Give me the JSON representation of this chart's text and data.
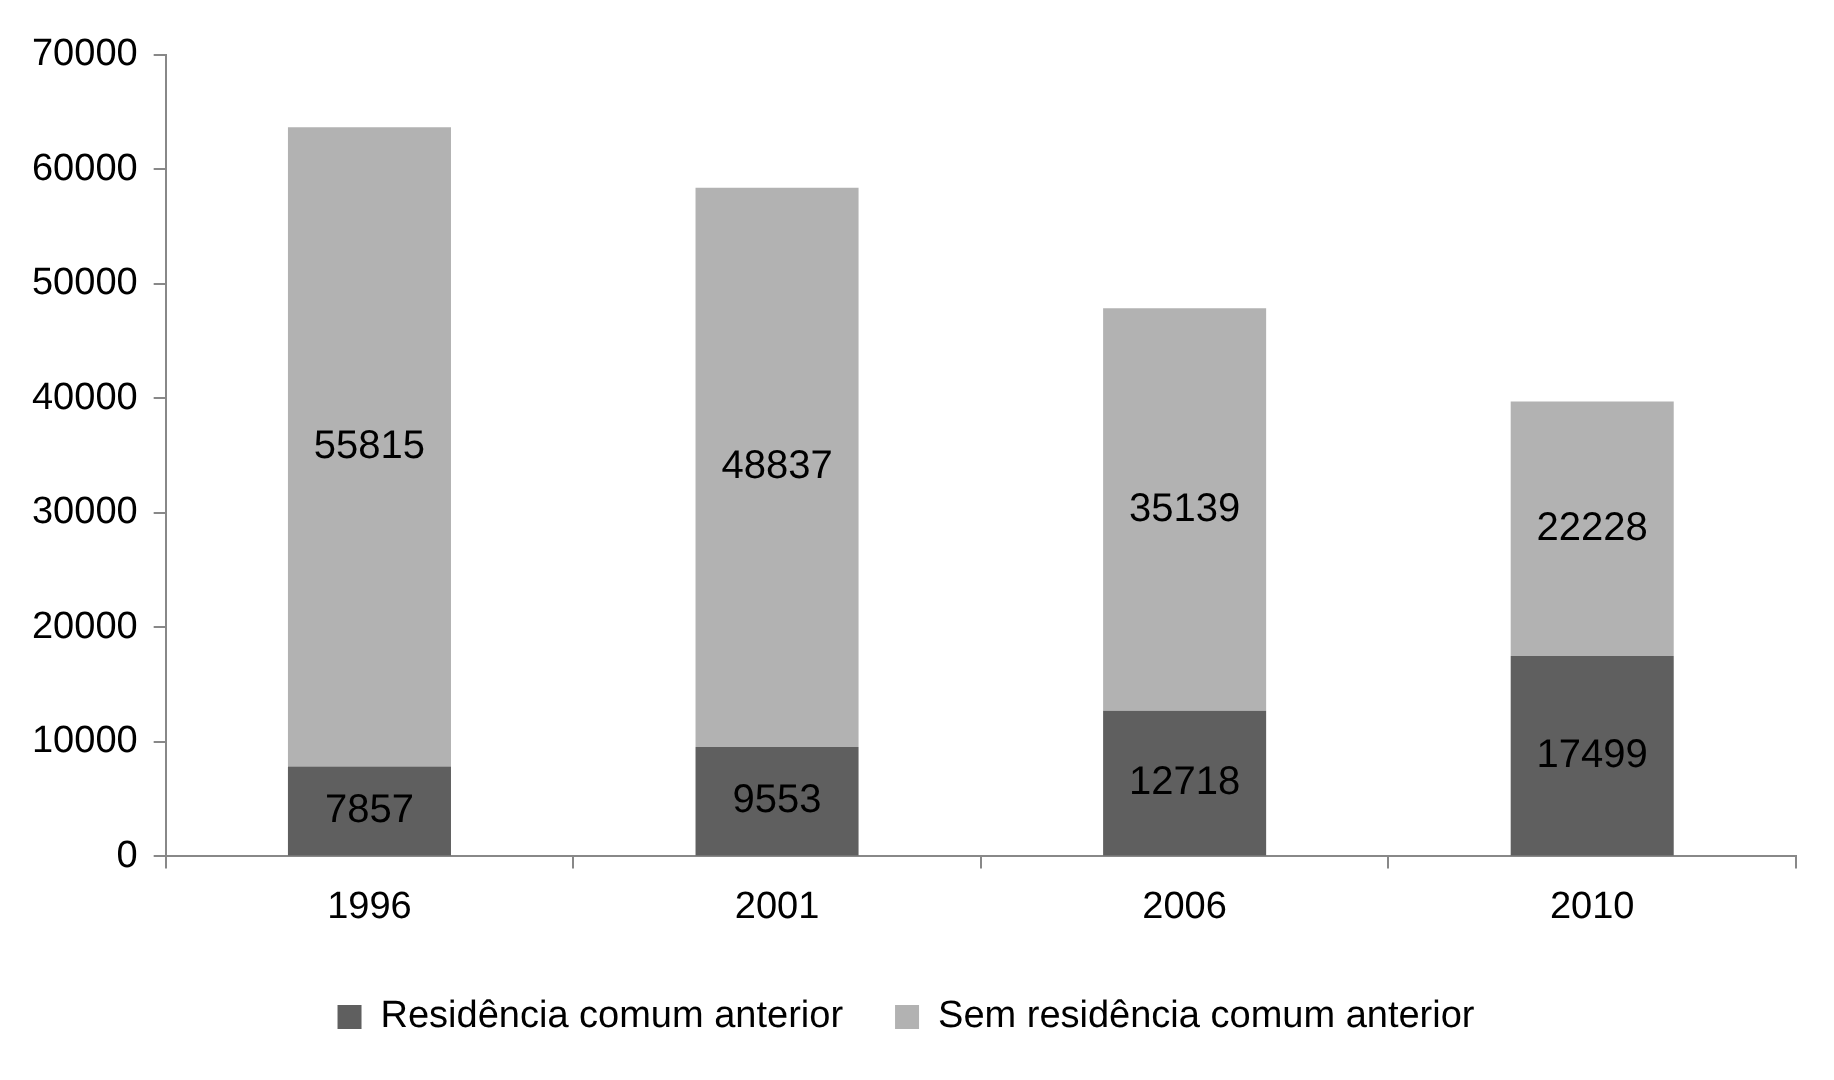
{
  "chart_data": {
    "type": "bar",
    "stacked": true,
    "categories": [
      "1996",
      "2001",
      "2006",
      "2010"
    ],
    "series": [
      {
        "name": "Residência comum anterior",
        "color": "#5f5f5f",
        "values": [
          7857,
          9553,
          12718,
          17499
        ]
      },
      {
        "name": "Sem residência comum anterior",
        "color": "#b2b2b2",
        "values": [
          55815,
          48837,
          35139,
          22228
        ]
      }
    ],
    "ylim": [
      0,
      70000
    ],
    "yticks": [
      0,
      10000,
      20000,
      30000,
      40000,
      50000,
      60000,
      70000
    ],
    "grid": false,
    "legend": "bottom",
    "data_labels": true
  }
}
